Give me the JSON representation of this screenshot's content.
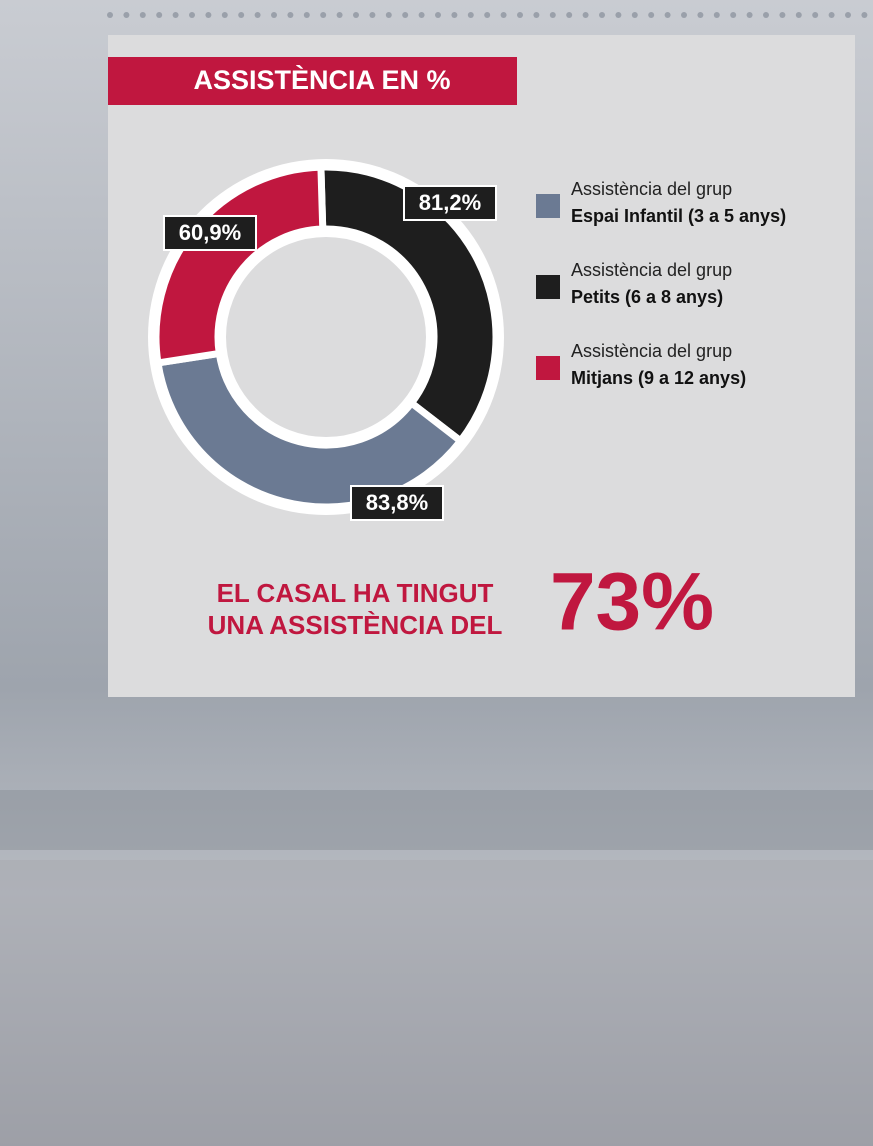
{
  "chart_data": {
    "type": "donut",
    "title": "ASSISTÈNCIA EN %",
    "legend_prefix": "Assistència del grup",
    "categories": [
      "Espai Infantil (3 a 5 anys)",
      "Petits (6 a 8 anys)",
      "Mitjans (9 a 12 anys)"
    ],
    "values": [
      83.8,
      81.2,
      60.9
    ],
    "value_labels": [
      "83,8%",
      "81,2%",
      "60,9%"
    ],
    "colors": [
      "#6b7a93",
      "#1e1e1e",
      "#c0173f"
    ],
    "summary": [
      "EL CASAL HA TINGUT",
      "UNA ASSISTÈNCIA DEL"
    ],
    "highlight": "73%"
  }
}
